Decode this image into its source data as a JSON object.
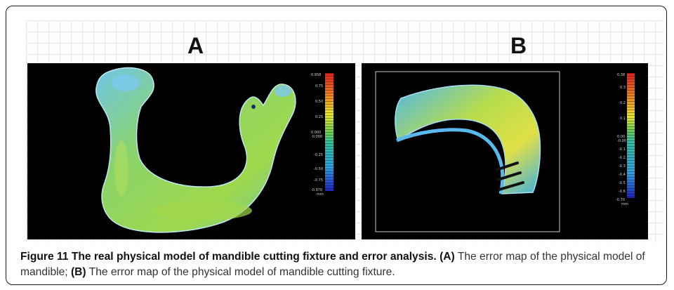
{
  "panels": [
    {
      "letter": "A",
      "scale_labels": [
        "0.958",
        "0.75",
        "0.50",
        "0.25",
        "0.000",
        "-0.000",
        "-0.25",
        "-0.50",
        "-0.75",
        "-0.970",
        "mm"
      ]
    },
    {
      "letter": "B",
      "scale_labels": [
        "0.38",
        "0.3",
        "0.2",
        "0.1",
        "0.00",
        "-0.00",
        "-0.1",
        "-0.2",
        "-0.3",
        "-0.4",
        "-0.5",
        "-0.6",
        "-0.70",
        "mm"
      ]
    }
  ],
  "caption": {
    "figure_label": "Figure 11",
    "title": "The real physical model of mandible cutting fixture and error analysis.",
    "ref_a": "(A)",
    "text_a": "The error map of the physical model of mandible;",
    "ref_b": "(B)",
    "text_b": "The error map of the physical model of mandible cutting fixture."
  },
  "colors": {
    "background": "#000000",
    "mesh_green": "#8fd14f",
    "mesh_blue": "#3fb3e6",
    "frame_border": "#1a1a1a"
  }
}
